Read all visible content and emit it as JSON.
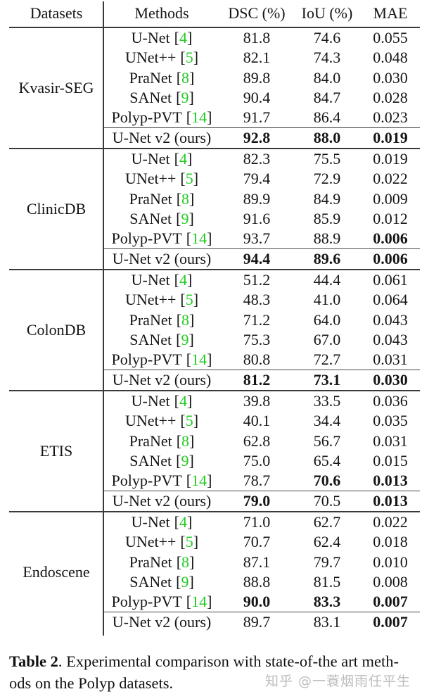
{
  "columns": {
    "datasets": "Datasets",
    "methods": "Methods",
    "dsc": "DSC (%)",
    "iou": "IoU (%)",
    "mae": "MAE"
  },
  "colors": {
    "citation_green": "#21cc21",
    "rule_dark": "#3a3a3a",
    "watermark_gray": "#bdbdbd"
  },
  "groups": [
    {
      "dataset": "Kvasir-SEG",
      "rows": [
        {
          "method": "U-Net",
          "ref": "4",
          "dsc": "81.8",
          "iou": "74.6",
          "mae": "0.055",
          "bold": []
        },
        {
          "method": "UNet++",
          "ref": "5",
          "dsc": "82.1",
          "iou": "74.3",
          "mae": "0.048",
          "bold": []
        },
        {
          "method": "PraNet",
          "ref": "8",
          "dsc": "89.8",
          "iou": "84.0",
          "mae": "0.030",
          "bold": []
        },
        {
          "method": "SANet",
          "ref": "9",
          "dsc": "90.4",
          "iou": "84.7",
          "mae": "0.028",
          "bold": []
        },
        {
          "method": "Polyp-PVT",
          "ref": "14",
          "dsc": "91.7",
          "iou": "86.4",
          "mae": "0.023",
          "bold": []
        },
        {
          "method": "U-Net v2 (ours)",
          "ref": "",
          "dsc": "92.8",
          "iou": "88.0",
          "mae": "0.019",
          "bold": [
            "dsc",
            "iou",
            "mae"
          ]
        }
      ]
    },
    {
      "dataset": "ClinicDB",
      "rows": [
        {
          "method": "U-Net",
          "ref": "4",
          "dsc": "82.3",
          "iou": "75.5",
          "mae": "0.019",
          "bold": []
        },
        {
          "method": "UNet++",
          "ref": "5",
          "dsc": "79.4",
          "iou": "72.9",
          "mae": "0.022",
          "bold": []
        },
        {
          "method": "PraNet",
          "ref": "8",
          "dsc": "89.9",
          "iou": "84.9",
          "mae": "0.009",
          "bold": []
        },
        {
          "method": "SANet",
          "ref": "9",
          "dsc": "91.6",
          "iou": "85.9",
          "mae": "0.012",
          "bold": []
        },
        {
          "method": "Polyp-PVT",
          "ref": "14",
          "dsc": "93.7",
          "iou": "88.9",
          "mae": "0.006",
          "bold": [
            "mae"
          ]
        },
        {
          "method": "U-Net v2 (ours)",
          "ref": "",
          "dsc": "94.4",
          "iou": "89.6",
          "mae": "0.006",
          "bold": [
            "dsc",
            "iou",
            "mae"
          ]
        }
      ]
    },
    {
      "dataset": "ColonDB",
      "rows": [
        {
          "method": "U-Net",
          "ref": "4",
          "dsc": "51.2",
          "iou": "44.4",
          "mae": "0.061",
          "bold": []
        },
        {
          "method": "UNet++",
          "ref": "5",
          "dsc": "48.3",
          "iou": "41.0",
          "mae": "0.064",
          "bold": []
        },
        {
          "method": "PraNet",
          "ref": "8",
          "dsc": "71.2",
          "iou": "64.0",
          "mae": "0.043",
          "bold": []
        },
        {
          "method": "SANet",
          "ref": "9",
          "dsc": "75.3",
          "iou": "67.0",
          "mae": "0.043",
          "bold": []
        },
        {
          "method": "Polyp-PVT",
          "ref": "14",
          "dsc": "80.8",
          "iou": "72.7",
          "mae": "0.031",
          "bold": []
        },
        {
          "method": "U-Net v2 (ours)",
          "ref": "",
          "dsc": "81.2",
          "iou": "73.1",
          "mae": "0.030",
          "bold": [
            "dsc",
            "iou",
            "mae"
          ]
        }
      ]
    },
    {
      "dataset": "ETIS",
      "rows": [
        {
          "method": "U-Net",
          "ref": "4",
          "dsc": "39.8",
          "iou": "33.5",
          "mae": "0.036",
          "bold": []
        },
        {
          "method": "UNet++",
          "ref": "5",
          "dsc": "40.1",
          "iou": "34.4",
          "mae": "0.035",
          "bold": []
        },
        {
          "method": "PraNet",
          "ref": "8",
          "dsc": "62.8",
          "iou": "56.7",
          "mae": "0.031",
          "bold": []
        },
        {
          "method": "SANet",
          "ref": "9",
          "dsc": "75.0",
          "iou": "65.4",
          "mae": "0.015",
          "bold": []
        },
        {
          "method": "Polyp-PVT",
          "ref": "14",
          "dsc": "78.7",
          "iou": "70.6",
          "mae": "0.013",
          "bold": [
            "iou",
            "mae"
          ]
        },
        {
          "method": "U-Net v2 (ours)",
          "ref": "",
          "dsc": "79.0",
          "iou": "70.5",
          "mae": "0.013",
          "bold": [
            "dsc",
            "mae"
          ]
        }
      ]
    },
    {
      "dataset": "Endoscene",
      "rows": [
        {
          "method": "U-Net",
          "ref": "4",
          "dsc": "71.0",
          "iou": "62.7",
          "mae": "0.022",
          "bold": []
        },
        {
          "method": "UNet++",
          "ref": "5",
          "dsc": "70.7",
          "iou": "62.4",
          "mae": "0.018",
          "bold": []
        },
        {
          "method": "PraNet",
          "ref": "8",
          "dsc": "87.1",
          "iou": "79.7",
          "mae": "0.010",
          "bold": []
        },
        {
          "method": "SANet",
          "ref": "9",
          "dsc": "88.8",
          "iou": "81.5",
          "mae": "0.008",
          "bold": []
        },
        {
          "method": "Polyp-PVT",
          "ref": "14",
          "dsc": "90.0",
          "iou": "83.3",
          "mae": "0.007",
          "bold": [
            "dsc",
            "iou",
            "mae"
          ]
        },
        {
          "method": "U-Net v2 (ours)",
          "ref": "",
          "dsc": "89.7",
          "iou": "83.1",
          "mae": "0.007",
          "bold": [
            "mae"
          ]
        }
      ]
    }
  ],
  "caption": {
    "label": "Table 2",
    "line1_rest": ". Experimental comparison with state-of-the art meth-",
    "line2": "ods on the Polyp datasets."
  },
  "watermark": "知乎 @一蓑烟雨任平生"
}
